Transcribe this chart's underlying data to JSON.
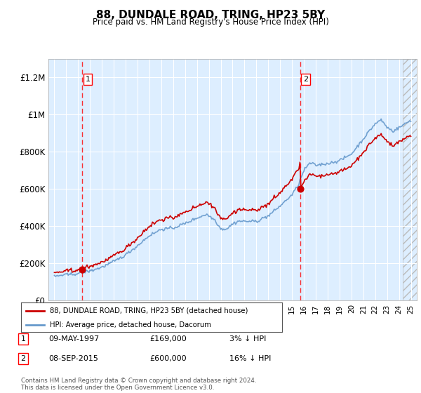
{
  "title": "88, DUNDALE ROAD, TRING, HP23 5BY",
  "subtitle": "Price paid vs. HM Land Registry's House Price Index (HPI)",
  "bg_color": "#ddeeff",
  "hpi_color": "#6699cc",
  "price_color": "#cc0000",
  "ylim": [
    0,
    1300000
  ],
  "yticks": [
    0,
    200000,
    400000,
    600000,
    800000,
    1000000,
    1200000
  ],
  "ytick_labels": [
    "£0",
    "£200K",
    "£400K",
    "£600K",
    "£800K",
    "£1M",
    "£1.2M"
  ],
  "sale1_year": 1997.36,
  "sale1_price": 169000,
  "sale2_year": 2015.68,
  "sale2_price": 600000,
  "legend_line1": "88, DUNDALE ROAD, TRING, HP23 5BY (detached house)",
  "legend_line2": "HPI: Average price, detached house, Dacorum",
  "annotation1_label": "1",
  "annotation1_date": "09-MAY-1997",
  "annotation1_price": "£169,000",
  "annotation1_pct": "3% ↓ HPI",
  "annotation2_label": "2",
  "annotation2_date": "08-SEP-2015",
  "annotation2_price": "£600,000",
  "annotation2_pct": "16% ↓ HPI",
  "footer": "Contains HM Land Registry data © Crown copyright and database right 2024.\nThis data is licensed under the Open Government Licence v3.0.",
  "xmin": 1994.5,
  "xmax": 2025.5
}
